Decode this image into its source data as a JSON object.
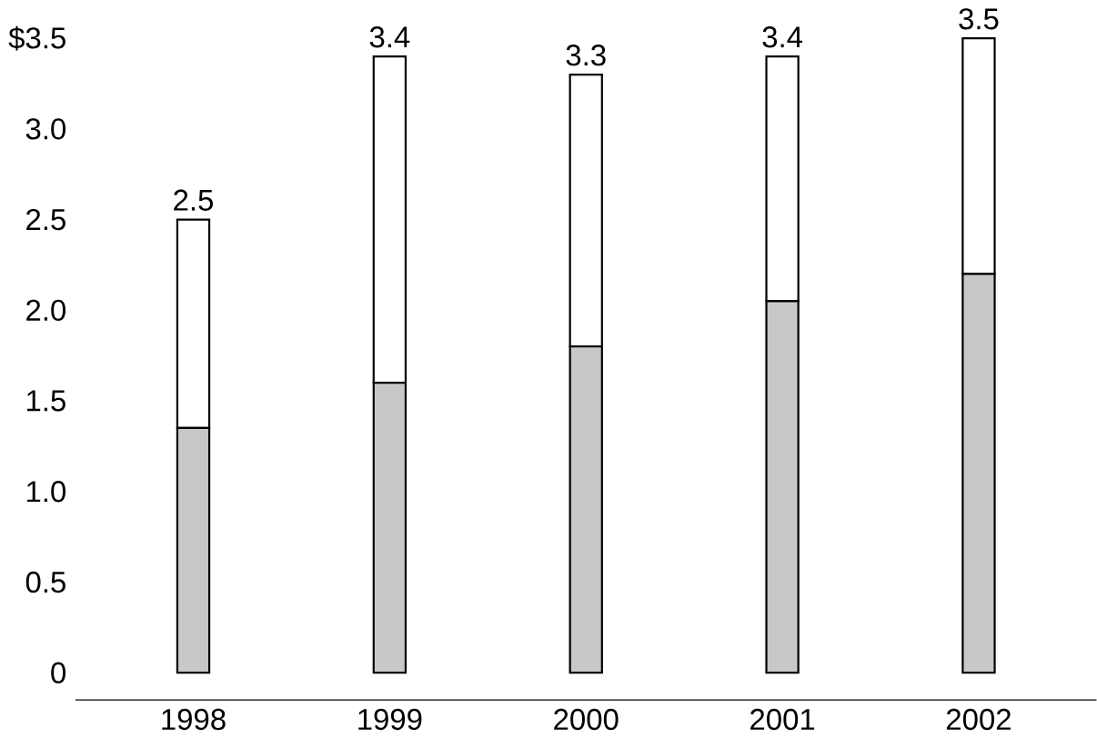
{
  "chart_data": {
    "type": "bar",
    "stacked": true,
    "categories": [
      "1998",
      "1999",
      "2000",
      "2001",
      "2002"
    ],
    "series": [
      {
        "color": "#c8c8c8",
        "values": [
          1.35,
          1.6,
          1.8,
          2.05,
          2.2
        ]
      },
      {
        "color": "#ffffff",
        "values": [
          1.15,
          1.8,
          1.5,
          1.35,
          1.3
        ]
      }
    ],
    "totals": [
      "2.5",
      "3.4",
      "3.3",
      "3.4",
      "3.5"
    ],
    "ylim": [
      -0.15,
      3.5
    ],
    "yticks": [
      {
        "value": 0,
        "label": "0"
      },
      {
        "value": 0.5,
        "label": "0.5"
      },
      {
        "value": 1,
        "label": "1.0"
      },
      {
        "value": 1.5,
        "label": "1.5"
      },
      {
        "value": 2,
        "label": "2.0"
      },
      {
        "value": 2.5,
        "label": "2.5"
      },
      {
        "value": 3,
        "label": "3.0"
      },
      {
        "value": 3.5,
        "label": "$3.5"
      }
    ]
  }
}
